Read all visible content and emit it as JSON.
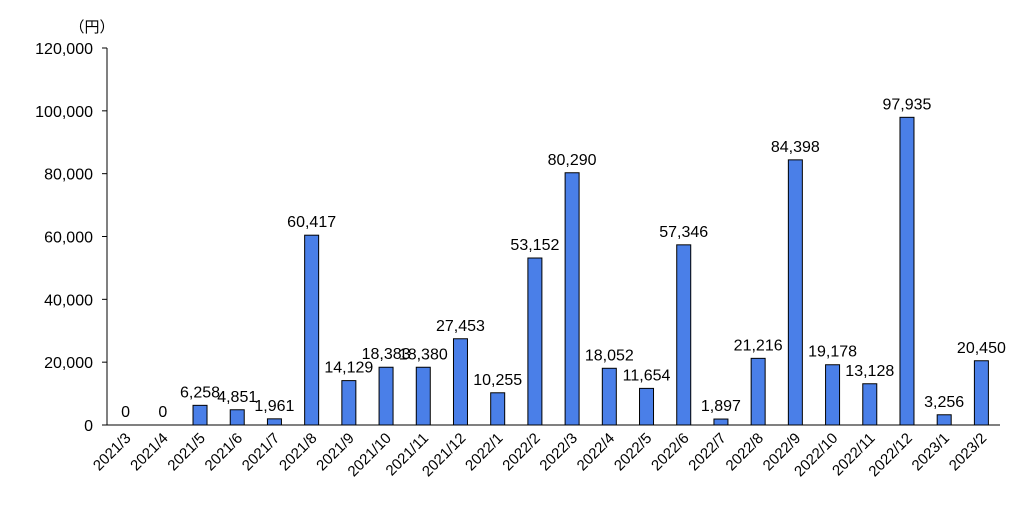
{
  "chart_data": {
    "type": "bar",
    "unit_label": "（円）",
    "categories": [
      "2021/3",
      "2021/4",
      "2021/5",
      "2021/6",
      "2021/7",
      "2021/8",
      "2021/9",
      "2021/10",
      "2021/11",
      "2021/12",
      "2022/1",
      "2022/2",
      "2022/3",
      "2022/4",
      "2022/5",
      "2022/6",
      "2022/7",
      "2022/8",
      "2022/9",
      "2022/10",
      "2022/11",
      "2022/12",
      "2023/1",
      "2023/2"
    ],
    "values": [
      0,
      0,
      6258,
      4851,
      1961,
      60417,
      14129,
      18383,
      18380,
      27453,
      10255,
      53152,
      80290,
      18052,
      11654,
      57346,
      1897,
      21216,
      84398,
      19178,
      13128,
      97935,
      3256,
      20450
    ],
    "data_labels": [
      "0",
      "0",
      "6,258",
      "4,851",
      "1,961",
      "60,417",
      "14,129",
      "18,383",
      "18,380",
      "27,453",
      "10,255",
      "53,152",
      "80,290",
      "18,052",
      "11,654",
      "57,346",
      "1,897",
      "21,216",
      "84,398",
      "19,178",
      "13,128",
      "97,935",
      "3,256",
      "20,450"
    ],
    "ylim": [
      0,
      120000
    ],
    "y_ticks": [
      0,
      20000,
      40000,
      60000,
      80000,
      100000,
      120000
    ],
    "y_tick_labels": [
      "0",
      "20,000",
      "40,000",
      "60,000",
      "80,000",
      "100,000",
      "120,000"
    ],
    "bar_color": "#4a7fe8",
    "bar_edge_color": "#000000",
    "grid": false,
    "legend": "none"
  }
}
